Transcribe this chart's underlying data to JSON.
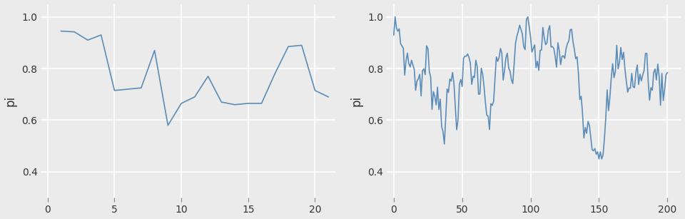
{
  "background_color": "#EBEBEB",
  "figure_facecolor": "#EBEBEB",
  "line_color": "#5B8DB8",
  "line_width": 1.2,
  "ylabel": "pi",
  "ylim": [
    0.3,
    1.05
  ],
  "yticks": [
    0.4,
    0.6,
    0.8,
    1.0
  ],
  "plot1": {
    "xlim": [
      -0.5,
      21.5
    ],
    "xticks": [
      0,
      5,
      10,
      15,
      20
    ],
    "x": [
      1,
      2,
      3,
      4,
      5,
      6,
      7,
      8,
      9,
      10,
      11,
      12,
      13,
      14,
      15,
      16,
      17,
      18,
      19,
      20,
      21
    ],
    "y": [
      0.945,
      0.942,
      0.91,
      0.93,
      0.715,
      0.72,
      0.725,
      0.87,
      0.58,
      0.665,
      0.69,
      0.77,
      0.67,
      0.66,
      0.665,
      0.665,
      0.78,
      0.885,
      0.89,
      0.715,
      0.69
    ]
  },
  "plot2": {
    "xlim": [
      -5,
      210
    ],
    "xticks": [
      0,
      50,
      100,
      150,
      200
    ],
    "n": 201
  },
  "grid_color": "white",
  "grid_linewidth": 1.2,
  "tick_labelsize": 10,
  "ylabel_fontsize": 12
}
